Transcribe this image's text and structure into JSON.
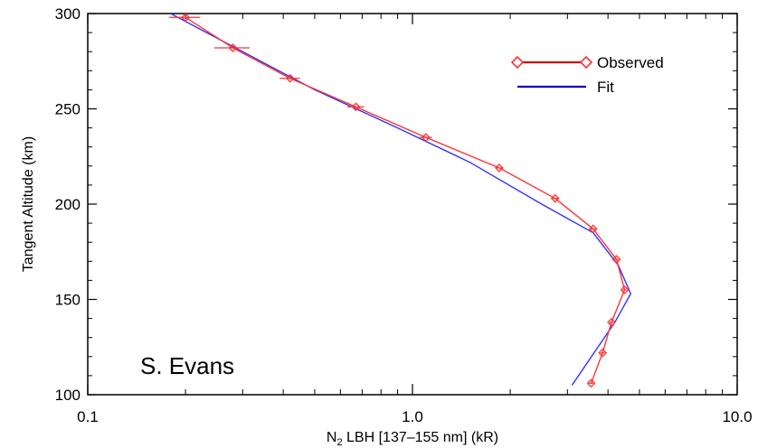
{
  "chart_data": {
    "type": "line",
    "title": "",
    "xlabel_prefix": "N",
    "xlabel_sub": "2",
    "xlabel_rest": " LBH [137–155 nm] (kR)",
    "ylabel": "Tangent Altitude (km)",
    "x_scale": "log",
    "xlim": [
      0.1,
      10.0
    ],
    "ylim": [
      100,
      300
    ],
    "x_ticks": [
      0.1,
      1.0,
      10.0
    ],
    "x_tick_labels": [
      "0.1",
      "1.0",
      "10.0"
    ],
    "y_ticks": [
      100,
      150,
      200,
      250,
      300
    ],
    "y_tick_labels": [
      "100",
      "150",
      "200",
      "250",
      "300"
    ],
    "grid": false,
    "legend_position": "top-right",
    "series": [
      {
        "name": "Observed",
        "color": "#ff3333",
        "legend_color": "#cc0000",
        "marker": "diamond",
        "x": [
          0.2,
          0.28,
          0.42,
          0.67,
          1.1,
          1.85,
          2.75,
          3.6,
          4.25,
          4.5,
          4.1,
          3.85,
          3.55
        ],
        "y": [
          298,
          282,
          266,
          251,
          235,
          219,
          203,
          187,
          171,
          155,
          138,
          122,
          106
        ],
        "xerr": [
          0.022,
          0.035,
          0.03,
          0.04,
          0.05,
          0.05,
          0.05,
          0.06,
          0.06,
          0.06,
          0.06,
          0.06,
          0.06
        ]
      },
      {
        "name": "Fit",
        "color": "#3333ff",
        "legend_color": "#0000cc",
        "marker": "none",
        "x": [
          0.18,
          0.3,
          0.5,
          0.9,
          1.5,
          2.5,
          3.6,
          4.3,
          4.7,
          4.2,
          3.1
        ],
        "y": [
          300,
          280,
          260,
          240,
          222,
          200,
          185,
          168,
          153,
          138,
          105
        ]
      }
    ],
    "annotation": "S. Evans"
  }
}
